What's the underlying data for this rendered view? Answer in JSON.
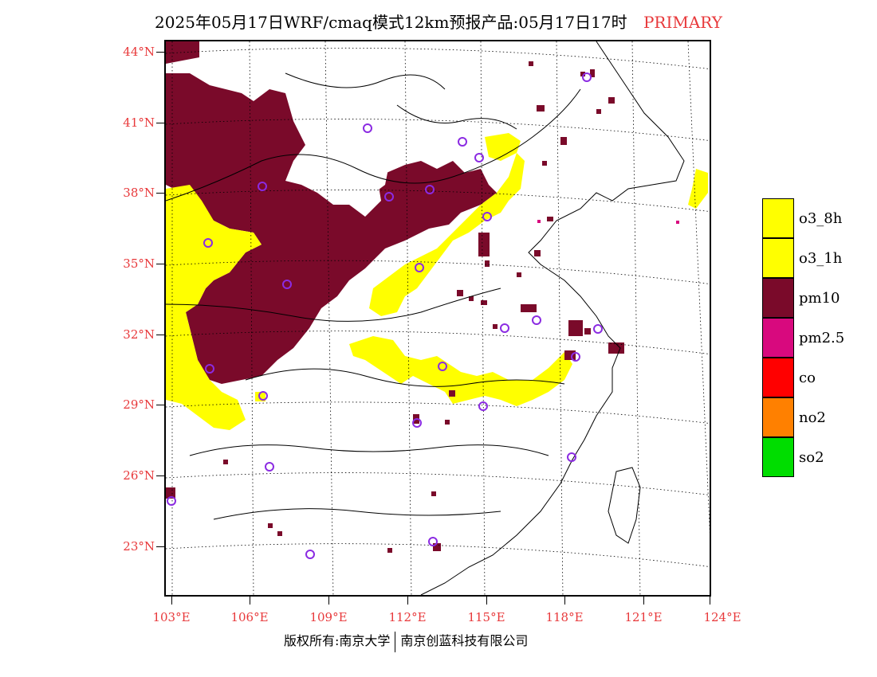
{
  "title": {
    "main": "2025年05月17日WRF/cmaq模式12km预报产品:05月17日17时",
    "tag": "PRIMARY"
  },
  "colors": {
    "o3_8h": "#ffff00",
    "o3_1h": "#ffff00",
    "pm10": "#7a0a2a",
    "pm25": "#d8097e",
    "co": "#ff0000",
    "no2": "#ff8000",
    "so2": "#00dd00",
    "station": "#8b2be2",
    "axis_label": "#e8393b"
  },
  "latitudes": [
    "44°N",
    "41°N",
    "38°N",
    "35°N",
    "32°N",
    "29°N",
    "26°N",
    "23°N"
  ],
  "longitudes": [
    "103°E",
    "106°E",
    "109°E",
    "112°E",
    "115°E",
    "118°E",
    "121°E",
    "124°E"
  ],
  "legend": [
    {
      "label": "o3_8h",
      "color": "#ffff00"
    },
    {
      "label": "o3_1h",
      "color": "#ffff00"
    },
    {
      "label": "pm10",
      "color": "#7a0a2a"
    },
    {
      "label": "pm2.5",
      "color": "#d8097e"
    },
    {
      "label": "co",
      "color": "#ff0000"
    },
    {
      "label": "no2",
      "color": "#ff8000"
    },
    {
      "label": "so2",
      "color": "#00dd00"
    }
  ],
  "footer": {
    "left": "版权所有:南京大学",
    "right": "南京创蓝科技有限公司"
  }
}
